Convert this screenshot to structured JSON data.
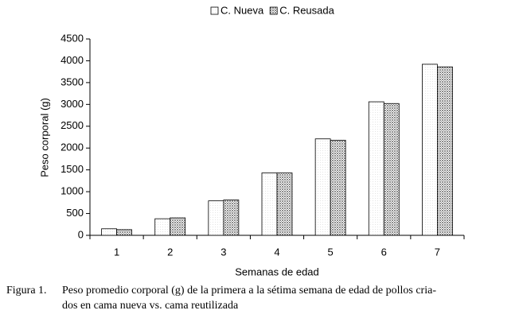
{
  "chart_data": {
    "type": "bar",
    "x_label": "Semanas de edad",
    "y_label": "Peso corporal (g)",
    "caption_label": "Figura 1.",
    "caption_lines": [
      "Peso promedio corporal (g) de la primera a la sétima semana de edad de pollos cria-",
      "dos en cama nueva vs. cama reutilizada"
    ],
    "categories": [
      "1",
      "2",
      "3",
      "4",
      "5",
      "6",
      "7"
    ],
    "series": [
      {
        "name": "C. Nueva",
        "color": "#e4e4e4",
        "values": [
          150,
          380,
          790,
          1430,
          2210,
          3060,
          3920
        ]
      },
      {
        "name": "C. Reusada",
        "color": "#8c8c8c",
        "values": [
          130,
          400,
          810,
          1430,
          2180,
          3020,
          3860
        ]
      }
    ],
    "ylim": [
      0,
      4500
    ],
    "yticks": [
      0,
      500,
      1000,
      1500,
      2000,
      2500,
      3000,
      3500,
      4000,
      4500
    ],
    "legend": "top"
  }
}
